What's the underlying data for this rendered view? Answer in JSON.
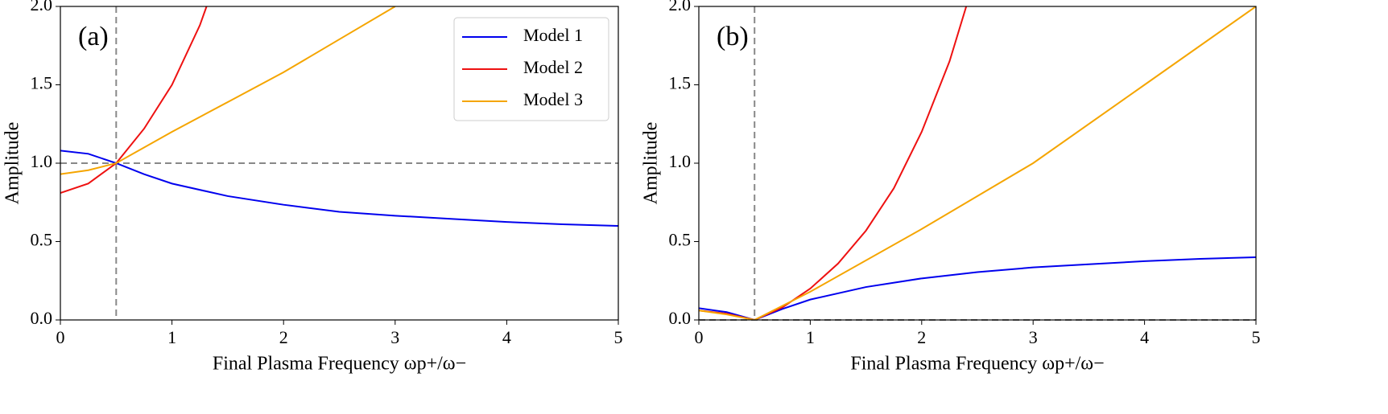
{
  "chart_data": [
    {
      "type": "line",
      "annotation": "(a)",
      "xlabel": "Final Plasma Frequency ωp+/ω−",
      "ylabel": "Amplitude",
      "xlim": [
        0,
        5
      ],
      "ylim": [
        0,
        2
      ],
      "xticks": [
        0,
        1,
        2,
        3,
        4,
        5
      ],
      "yticks": [
        {
          "value": 0,
          "label": "0.0"
        },
        0.5,
        {
          "value": 1,
          "label": "1.0"
        },
        1.5,
        {
          "value": 2,
          "label": "2.0"
        }
      ],
      "legend": "upper right",
      "reference_lines": {
        "x": 0.5,
        "y": 1
      },
      "series": [
        {
          "name": "Model 1",
          "color": "#0000ee",
          "x": [
            0,
            0.25,
            0.5,
            0.75,
            1,
            1.5,
            2,
            2.5,
            3,
            3.5,
            4,
            4.5,
            5
          ],
          "values": [
            1.08,
            1.06,
            1.0,
            0.93,
            0.87,
            0.79,
            0.735,
            0.69,
            0.665,
            0.645,
            0.625,
            0.61,
            0.6
          ]
        },
        {
          "name": "Model 2",
          "color": "#ee1111",
          "x": [
            0,
            0.25,
            0.5,
            0.75,
            1,
            1.25,
            1.31
          ],
          "values": [
            0.81,
            0.87,
            1.0,
            1.22,
            1.5,
            1.88,
            2.0
          ]
        },
        {
          "name": "Model 3",
          "color": "#f5a500",
          "x": [
            0,
            0.25,
            0.5,
            1,
            1.5,
            2,
            2.5,
            3
          ],
          "values": [
            0.93,
            0.955,
            1.0,
            1.2,
            1.39,
            1.58,
            1.79,
            2.0
          ]
        }
      ]
    },
    {
      "type": "line",
      "annotation": "(b)",
      "xlabel": "Final Plasma Frequency ωp+/ω−",
      "ylabel": "Amplitude",
      "xlim": [
        0,
        5
      ],
      "ylim": [
        0,
        2
      ],
      "xticks": [
        0,
        1,
        2,
        3,
        4,
        5
      ],
      "yticks": [
        {
          "value": 0,
          "label": "0.0"
        },
        0.5,
        {
          "value": 1,
          "label": "1.0"
        },
        1.5,
        {
          "value": 2,
          "label": "2.0"
        }
      ],
      "reference_lines": {
        "x": 0.5,
        "y": 0
      },
      "series": [
        {
          "color": "#0000ee",
          "x": [
            0,
            0.25,
            0.5,
            0.75,
            1,
            1.5,
            2,
            2.5,
            3,
            3.5,
            4,
            4.5,
            5
          ],
          "values": [
            0.075,
            0.05,
            0,
            0.07,
            0.13,
            0.21,
            0.265,
            0.305,
            0.335,
            0.355,
            0.375,
            0.39,
            0.4
          ]
        },
        {
          "color": "#ee1111",
          "x": [
            0,
            0.25,
            0.5,
            0.75,
            1,
            1.25,
            1.5,
            1.75,
            2,
            2.25,
            2.4
          ],
          "values": [
            0.06,
            0.04,
            0,
            0.08,
            0.2,
            0.36,
            0.57,
            0.84,
            1.2,
            1.65,
            2.0
          ]
        },
        {
          "color": "#f5a500",
          "x": [
            0,
            0.25,
            0.5,
            1,
            2,
            3,
            4,
            5
          ],
          "values": [
            0.06,
            0.035,
            0,
            0.18,
            0.58,
            1.0,
            1.5,
            2.0
          ]
        }
      ]
    }
  ]
}
